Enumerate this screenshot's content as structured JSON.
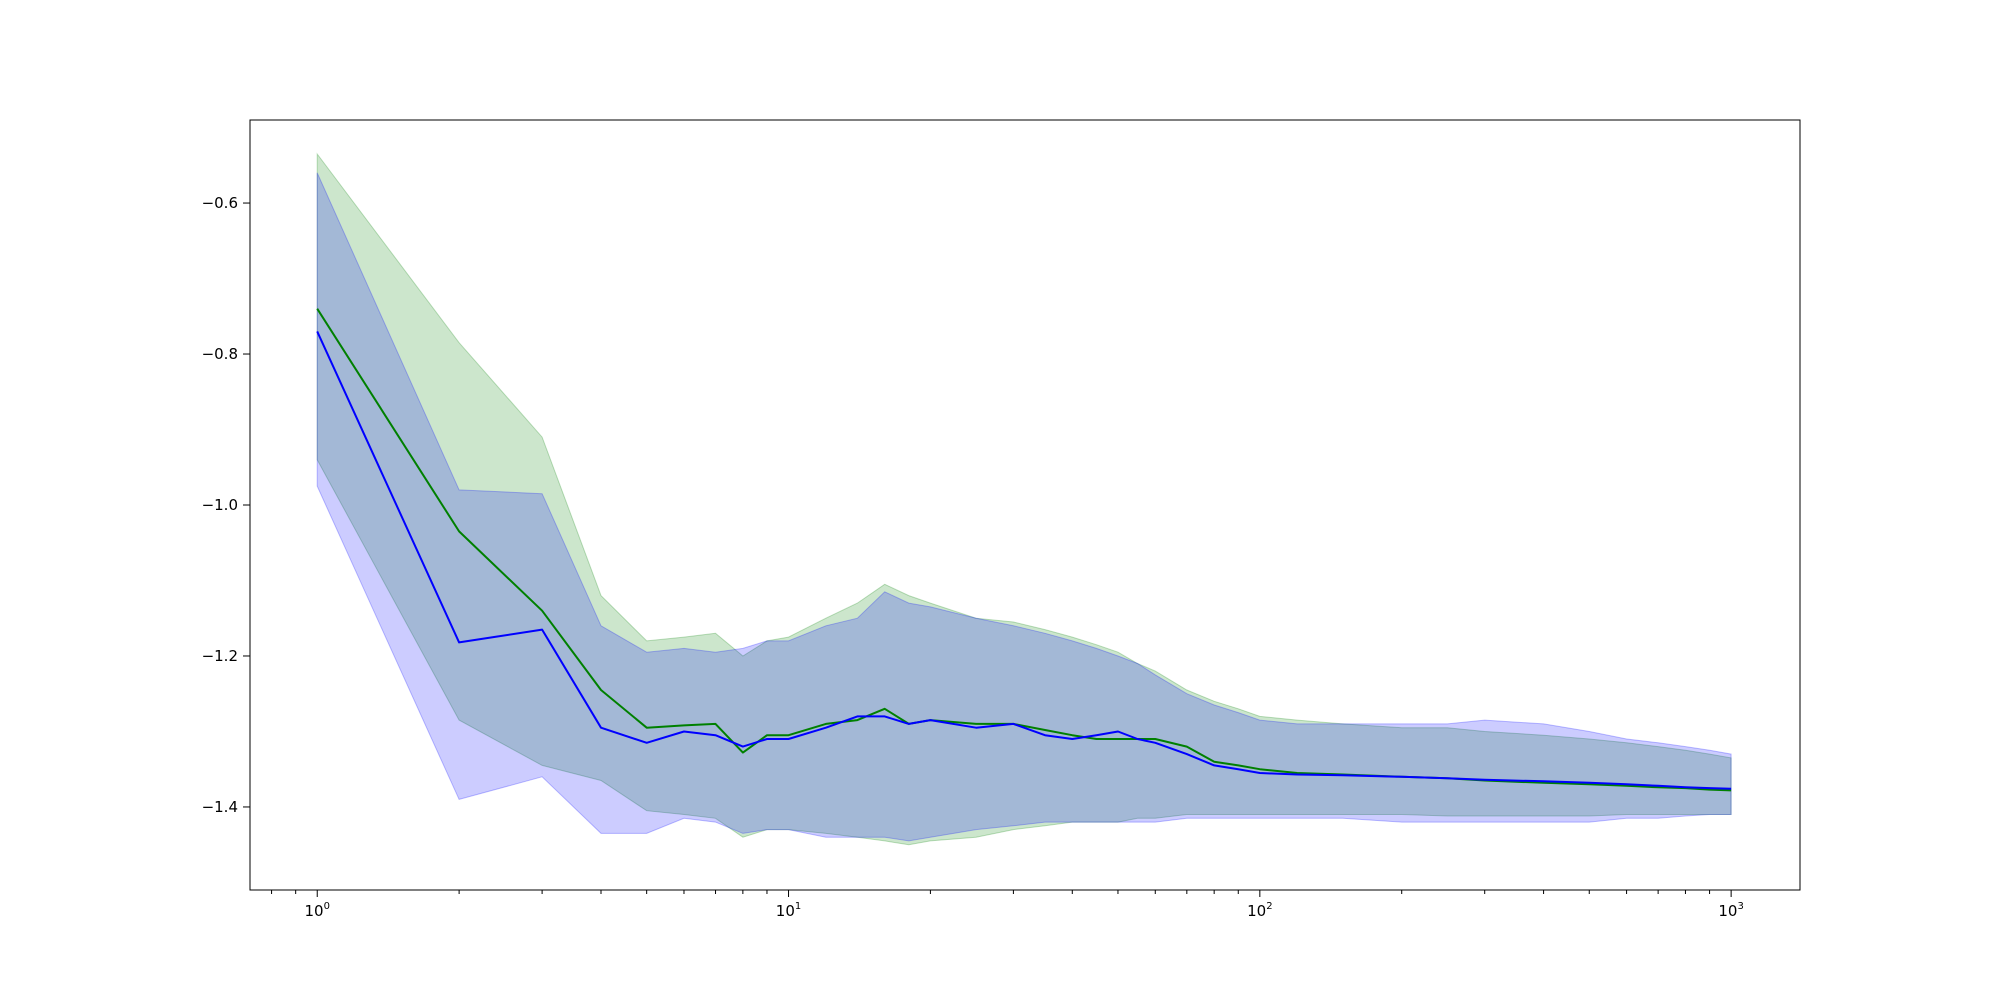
{
  "chart_data": {
    "type": "line",
    "title": "",
    "xlabel": "",
    "ylabel": "",
    "xscale": "log",
    "xlim": [
      0.72,
      1400
    ],
    "ylim": [
      -1.51,
      -0.49
    ],
    "x_ticks": [
      {
        "value": 1,
        "base": "10",
        "exp": "0"
      },
      {
        "value": 10,
        "base": "10",
        "exp": "1"
      },
      {
        "value": 100,
        "base": "10",
        "exp": "2"
      },
      {
        "value": 1000,
        "base": "10",
        "exp": "3"
      }
    ],
    "y_ticks": [
      {
        "value": -0.6,
        "label": "−0.6"
      },
      {
        "value": -0.8,
        "label": "−0.8"
      },
      {
        "value": -1.0,
        "label": "−1.0"
      },
      {
        "value": -1.2,
        "label": "−1.2"
      },
      {
        "value": -1.4,
        "label": "−1.4"
      }
    ],
    "grid": false,
    "legend": "none",
    "series": [
      {
        "color": "#008000",
        "band_color": "#008000",
        "band_opacity": 0.2,
        "x": [
          1,
          2,
          3,
          4,
          5,
          6,
          7,
          8,
          9,
          10,
          12,
          14,
          16,
          18,
          20,
          25,
          30,
          35,
          40,
          45,
          50,
          55,
          60,
          70,
          80,
          90,
          100,
          120,
          150,
          200,
          250,
          300,
          400,
          500,
          600,
          700,
          800,
          900,
          1000
        ],
        "y": [
          -0.74,
          -1.035,
          -1.14,
          -1.245,
          -1.295,
          -1.292,
          -1.29,
          -1.328,
          -1.305,
          -1.305,
          -1.29,
          -1.285,
          -1.27,
          -1.29,
          -1.285,
          -1.29,
          -1.29,
          -1.298,
          -1.305,
          -1.31,
          -1.31,
          -1.31,
          -1.31,
          -1.32,
          -1.34,
          -1.345,
          -1.35,
          -1.355,
          -1.357,
          -1.36,
          -1.362,
          -1.365,
          -1.368,
          -1.37,
          -1.372,
          -1.374,
          -1.375,
          -1.377,
          -1.378
        ],
        "upper": [
          -0.535,
          -0.785,
          -0.91,
          -1.12,
          -1.18,
          -1.175,
          -1.17,
          -1.2,
          -1.18,
          -1.175,
          -1.15,
          -1.13,
          -1.105,
          -1.12,
          -1.13,
          -1.15,
          -1.155,
          -1.165,
          -1.175,
          -1.185,
          -1.195,
          -1.21,
          -1.22,
          -1.245,
          -1.26,
          -1.27,
          -1.28,
          -1.285,
          -1.29,
          -1.295,
          -1.295,
          -1.3,
          -1.305,
          -1.31,
          -1.315,
          -1.32,
          -1.325,
          -1.33,
          -1.335
        ],
        "lower": [
          -0.94,
          -1.285,
          -1.345,
          -1.365,
          -1.405,
          -1.41,
          -1.415,
          -1.44,
          -1.43,
          -1.43,
          -1.435,
          -1.44,
          -1.445,
          -1.45,
          -1.445,
          -1.44,
          -1.43,
          -1.425,
          -1.42,
          -1.42,
          -1.42,
          -1.415,
          -1.415,
          -1.41,
          -1.41,
          -1.41,
          -1.41,
          -1.41,
          -1.41,
          -1.41,
          -1.412,
          -1.412,
          -1.412,
          -1.412,
          -1.41,
          -1.41,
          -1.41,
          -1.41,
          -1.41
        ]
      },
      {
        "color": "#0000ff",
        "band_color": "#0000ff",
        "band_opacity": 0.2,
        "x": [
          1,
          2,
          3,
          4,
          5,
          6,
          7,
          8,
          9,
          10,
          12,
          14,
          16,
          18,
          20,
          25,
          30,
          35,
          40,
          45,
          50,
          55,
          60,
          70,
          80,
          90,
          100,
          120,
          150,
          200,
          250,
          300,
          400,
          500,
          600,
          700,
          800,
          900,
          1000
        ],
        "y": [
          -0.77,
          -1.182,
          -1.165,
          -1.295,
          -1.315,
          -1.3,
          -1.305,
          -1.32,
          -1.31,
          -1.31,
          -1.295,
          -1.28,
          -1.28,
          -1.29,
          -1.285,
          -1.295,
          -1.29,
          -1.305,
          -1.31,
          -1.305,
          -1.3,
          -1.31,
          -1.315,
          -1.33,
          -1.345,
          -1.35,
          -1.355,
          -1.357,
          -1.358,
          -1.36,
          -1.362,
          -1.364,
          -1.366,
          -1.368,
          -1.37,
          -1.372,
          -1.374,
          -1.375,
          -1.376
        ],
        "upper": [
          -0.56,
          -0.98,
          -0.985,
          -1.16,
          -1.195,
          -1.19,
          -1.195,
          -1.19,
          -1.18,
          -1.18,
          -1.16,
          -1.15,
          -1.115,
          -1.13,
          -1.135,
          -1.15,
          -1.16,
          -1.17,
          -1.18,
          -1.19,
          -1.2,
          -1.21,
          -1.225,
          -1.25,
          -1.265,
          -1.275,
          -1.285,
          -1.29,
          -1.29,
          -1.29,
          -1.29,
          -1.285,
          -1.29,
          -1.3,
          -1.31,
          -1.315,
          -1.32,
          -1.325,
          -1.33
        ],
        "lower": [
          -0.975,
          -1.39,
          -1.36,
          -1.435,
          -1.435,
          -1.415,
          -1.42,
          -1.435,
          -1.43,
          -1.43,
          -1.44,
          -1.44,
          -1.44,
          -1.445,
          -1.44,
          -1.43,
          -1.425,
          -1.42,
          -1.42,
          -1.42,
          -1.42,
          -1.42,
          -1.42,
          -1.415,
          -1.415,
          -1.415,
          -1.415,
          -1.415,
          -1.415,
          -1.42,
          -1.42,
          -1.42,
          -1.42,
          -1.42,
          -1.415,
          -1.415,
          -1.412,
          -1.41,
          -1.41
        ]
      }
    ]
  }
}
